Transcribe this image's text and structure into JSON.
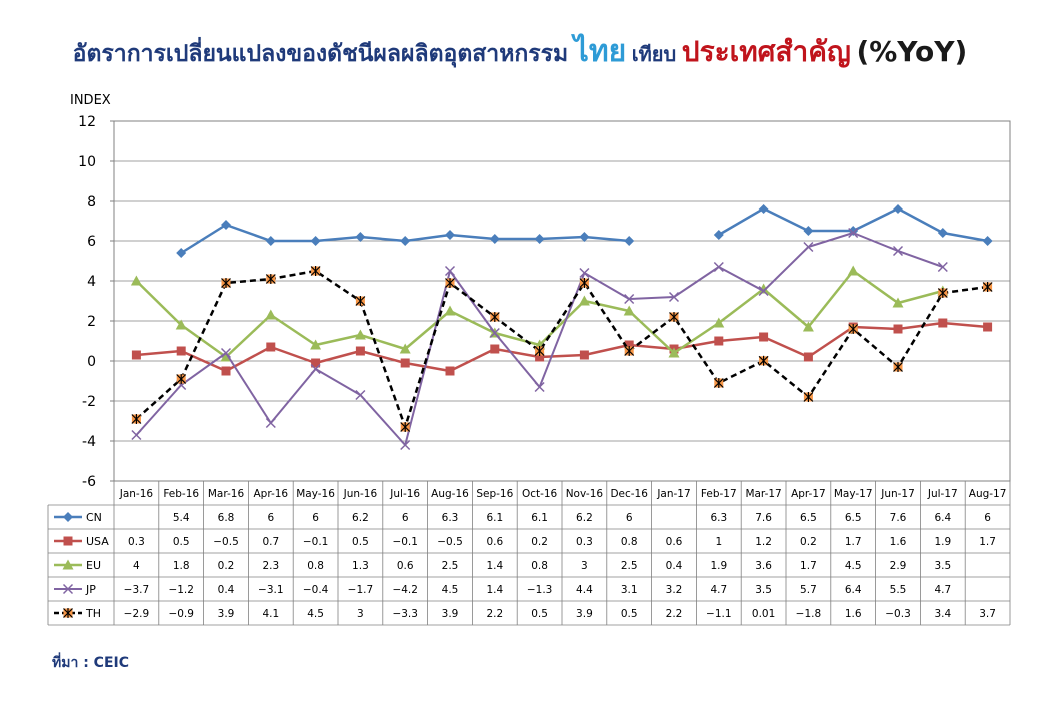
{
  "title": {
    "part1": "อัตราการเปลี่ยนแปลงของดัชนีผลผลิตอุตสาหกรรม",
    "part2": "ไทย",
    "part3": "เทียบ",
    "part4": "ประเทศสำคัญ",
    "part5": "(%YoY)"
  },
  "source": "ที่มา : CEIC",
  "colors": {
    "CN": "#4a7ebb",
    "USA": "#c0504d",
    "EU": "#9bbb59",
    "JP": "#8064a2",
    "TH": "#000000",
    "TH_marker": "#f79646"
  },
  "chart_data": {
    "type": "line",
    "ylabel": "INDEX",
    "ylim": [
      -6,
      12
    ],
    "yticks": [
      -6,
      -4,
      -2,
      0,
      2,
      4,
      6,
      8,
      10,
      12
    ],
    "grid": true,
    "legend": "data-table",
    "categories": [
      "Jan-16",
      "Feb-16",
      "Mar-16",
      "Apr-16",
      "May-16",
      "Jun-16",
      "Jul-16",
      "Aug-16",
      "Sep-16",
      "Oct-16",
      "Nov-16",
      "Dec-16",
      "Jan-17",
      "Feb-17",
      "Mar-17",
      "Apr-17",
      "May-17",
      "Jun-17",
      "Jul-17",
      "Aug-17"
    ],
    "series": [
      {
        "name": "CN",
        "values": [
          null,
          5.4,
          6.8,
          6,
          6,
          6.2,
          6,
          6.3,
          6.1,
          6.1,
          6.2,
          6,
          null,
          6.3,
          7.6,
          6.5,
          6.5,
          7.6,
          6.4,
          6
        ]
      },
      {
        "name": "USA",
        "values": [
          0.3,
          0.5,
          -0.5,
          0.7,
          -0.1,
          0.5,
          -0.1,
          -0.5,
          0.6,
          0.2,
          0.3,
          0.8,
          0.6,
          1,
          1.2,
          0.2,
          1.7,
          1.6,
          1.9,
          1.7
        ]
      },
      {
        "name": "EU",
        "values": [
          4,
          1.8,
          0.2,
          2.3,
          0.8,
          1.3,
          0.6,
          2.5,
          1.4,
          0.8,
          3,
          2.5,
          0.4,
          1.9,
          3.6,
          1.7,
          4.5,
          2.9,
          3.5,
          null
        ]
      },
      {
        "name": "JP",
        "values": [
          -3.7,
          -1.2,
          0.4,
          -3.1,
          -0.4,
          -1.7,
          -4.2,
          4.5,
          1.4,
          -1.3,
          4.4,
          3.1,
          3.2,
          4.7,
          3.5,
          5.7,
          6.4,
          5.5,
          4.7,
          null
        ]
      },
      {
        "name": "TH",
        "values": [
          -2.9,
          -0.9,
          3.9,
          4.1,
          4.5,
          3,
          -3.3,
          3.9,
          2.2,
          0.5,
          3.9,
          0.5,
          2.2,
          -1.1,
          0.01,
          -1.8,
          1.6,
          -0.3,
          3.4,
          3.7
        ]
      }
    ]
  }
}
